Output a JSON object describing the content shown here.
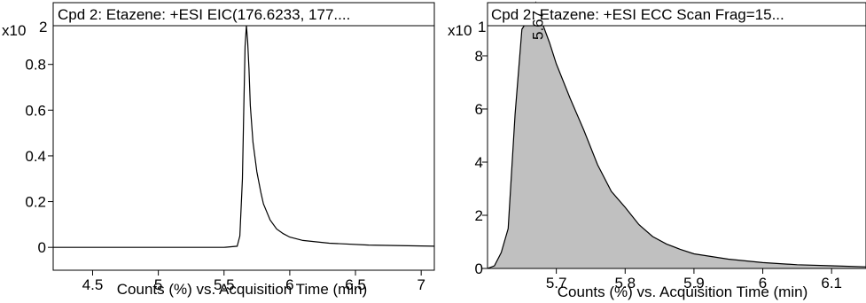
{
  "chart_data": [
    {
      "type": "line",
      "title": "Cpd 2: Etazene: +ESI EIC(176.6233, 177....",
      "xlabel": "Counts (%) vs. Acquisition Time (min)",
      "ylabel": "",
      "y_multiplier": "x10 2",
      "xlim": [
        4.2,
        7.1
      ],
      "ylim": [
        -0.1,
        1.07
      ],
      "xticks": [
        "4.5",
        "5",
        "5.5",
        "6",
        "6.5",
        "7"
      ],
      "yticks": [
        "0",
        "0.2",
        "0.4",
        "0.6",
        "0.8"
      ],
      "peak_label": "",
      "series": [
        {
          "x": [
            4.2,
            5.0,
            5.5,
            5.6,
            5.62,
            5.64,
            5.65,
            5.66,
            5.67,
            5.68,
            5.69,
            5.7,
            5.72,
            5.75,
            5.78,
            5.8,
            5.85,
            5.9,
            5.95,
            6.0,
            6.1,
            6.3,
            6.6,
            7.1
          ],
          "y": [
            0.0,
            0.0,
            0.0,
            0.005,
            0.05,
            0.3,
            0.6,
            0.88,
            0.97,
            0.9,
            0.78,
            0.62,
            0.46,
            0.33,
            0.24,
            0.19,
            0.12,
            0.08,
            0.06,
            0.045,
            0.03,
            0.018,
            0.01,
            0.005
          ]
        }
      ]
    },
    {
      "type": "area",
      "title": "Cpd 2: Etazene: +ESI ECC Scan Frag=15...",
      "xlabel": "Counts (%) vs. Acquisition Time (min)",
      "ylabel": "",
      "y_multiplier": "x10 1",
      "xlim": [
        5.6,
        6.15
      ],
      "ylim": [
        0,
        10
      ],
      "xticks": [
        "5.7",
        "5.8",
        "5.9",
        "6",
        "6.1"
      ],
      "yticks": [
        "0",
        "2",
        "4",
        "6",
        "8"
      ],
      "peak_label": "5.67",
      "series": [
        {
          "x": [
            5.6,
            5.61,
            5.62,
            5.63,
            5.64,
            5.65,
            5.66,
            5.67,
            5.68,
            5.69,
            5.7,
            5.72,
            5.74,
            5.76,
            5.78,
            5.8,
            5.82,
            5.84,
            5.86,
            5.88,
            5.9,
            5.95,
            6.0,
            6.05,
            6.1,
            6.15
          ],
          "y": [
            0.0,
            0.1,
            0.6,
            1.5,
            5.8,
            9.0,
            9.4,
            10.0,
            9.2,
            8.5,
            7.7,
            6.4,
            5.2,
            3.9,
            2.9,
            2.3,
            1.65,
            1.2,
            0.92,
            0.72,
            0.55,
            0.35,
            0.22,
            0.14,
            0.1,
            0.06
          ]
        }
      ]
    }
  ]
}
